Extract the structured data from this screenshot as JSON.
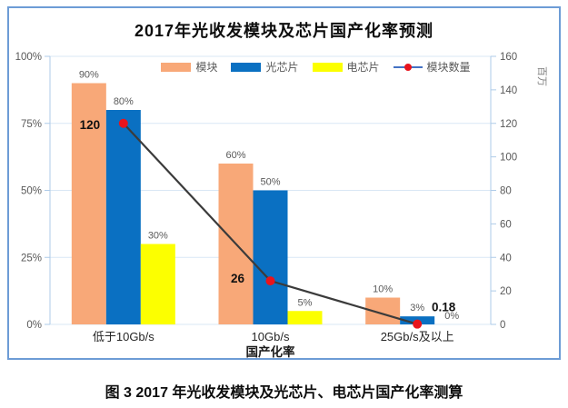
{
  "caption": "图 3 2017 年光收发模块及光芯片、电芯片国产化率测算",
  "chart_data": {
    "type": "combo-bar-line",
    "title": "2017年光收发模块及芯片国产化率预测",
    "categories": [
      "低于10Gb/s",
      "10Gb/s",
      "25Gb/s及以上"
    ],
    "bar_series": [
      {
        "name": "模块",
        "color": "#F8A878",
        "values_pct": [
          90,
          60,
          10
        ],
        "labels": [
          "90%",
          "60%",
          "10%"
        ]
      },
      {
        "name": "光芯片",
        "color": "#0A70C2",
        "values_pct": [
          80,
          50,
          3
        ],
        "labels": [
          "80%",
          "50%",
          "3%"
        ]
      },
      {
        "name": "电芯片",
        "color": "#FCFF00",
        "values_pct": [
          30,
          5,
          0
        ],
        "labels": [
          "30%",
          "5%",
          "0%"
        ]
      }
    ],
    "line_series": {
      "name": "模块数量",
      "axis": "right",
      "values": [
        120,
        26,
        0.18
      ],
      "labels": [
        "120",
        "26",
        "0.18"
      ],
      "line_color": "#3B3B3B",
      "legend_line_color": "#4472C4",
      "marker_color": "#E8141C"
    },
    "left_axis": {
      "min": 0,
      "max": 100,
      "ticks": [
        "0%",
        "25%",
        "50%",
        "75%",
        "100%"
      ]
    },
    "right_axis": {
      "min": 0,
      "max": 160,
      "ticks": [
        "0",
        "20",
        "40",
        "60",
        "80",
        "100",
        "120",
        "140",
        "160"
      ],
      "unit": "百万"
    },
    "xlabel": "国产化率",
    "grid": true,
    "legend_position": "top",
    "frame_color": "#6D9CD6",
    "gridline_color": "#D9E7F5",
    "axis_color": "#AECBE8",
    "tick_label_color": "#595959",
    "value_label_color": "#595959",
    "emphasis_label_color": "#111111"
  }
}
